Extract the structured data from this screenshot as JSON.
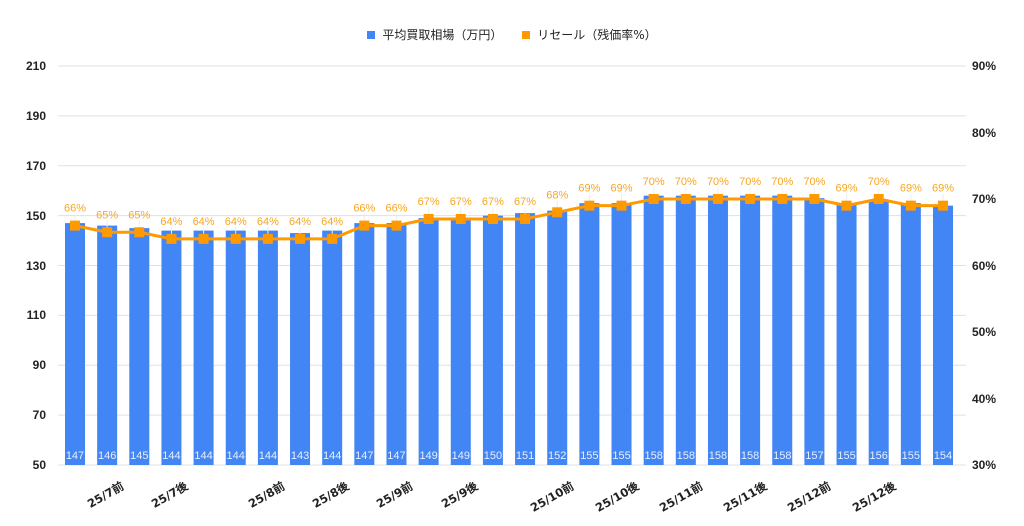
{
  "legend": {
    "bar_label": "平均買取相場（万円）",
    "line_label": "リセール（残価率%）"
  },
  "colors": {
    "bar": "#4285f4",
    "line": "#ff9900",
    "line_label": "#f6a623",
    "bar_value_text": "#e8f0fe",
    "grid": "#e0e0e0",
    "axis_text": "#222222"
  },
  "left_axis": {
    "ticks": [
      "210",
      "190",
      "170",
      "150",
      "130",
      "110",
      "90",
      "70",
      "50"
    ]
  },
  "right_axis": {
    "ticks": [
      "90%",
      "80%",
      "70%",
      "60%",
      "50%",
      "40%",
      "30%"
    ]
  },
  "chart_data": {
    "type": "bar",
    "title": "",
    "xlabel": "",
    "ylabel": "",
    "ylim": [
      50,
      210
    ],
    "y2lim": [
      30,
      90
    ],
    "grid": true,
    "legend_position": "top",
    "categories": [
      "",
      "25/7前",
      "",
      "25/7後",
      "",
      "",
      "25/8前",
      "",
      "25/8後",
      "",
      "25/9前",
      "",
      "25/9後",
      "",
      "",
      "25/10前",
      "",
      "25/10後",
      "",
      "25/11前",
      "",
      "25/11後",
      "",
      "25/12前",
      "",
      "25/12後",
      "",
      ""
    ],
    "x_tick_labels_visible": [
      "25/7前",
      "25/7後",
      "25/8前",
      "25/8後",
      "25/9前",
      "25/9後",
      "25/10前",
      "25/10後",
      "25/11前",
      "25/11後",
      "25/12前",
      "25/12後"
    ],
    "series": [
      {
        "name": "平均買取相場（万円）",
        "type": "bar",
        "axis": "left",
        "values": [
          147,
          146,
          145,
          144,
          144,
          144,
          144,
          143,
          144,
          147,
          147,
          149,
          149,
          150,
          151,
          152,
          155,
          155,
          158,
          158,
          158,
          158,
          158,
          157,
          155,
          156,
          155,
          154
        ]
      },
      {
        "name": "リセール（残価率%）",
        "type": "line",
        "axis": "right",
        "values": [
          66,
          65,
          65,
          64,
          64,
          64,
          64,
          64,
          64,
          66,
          66,
          67,
          67,
          67,
          67,
          68,
          69,
          69,
          70,
          70,
          70,
          70,
          70,
          70,
          69,
          70,
          69,
          69
        ]
      }
    ]
  }
}
